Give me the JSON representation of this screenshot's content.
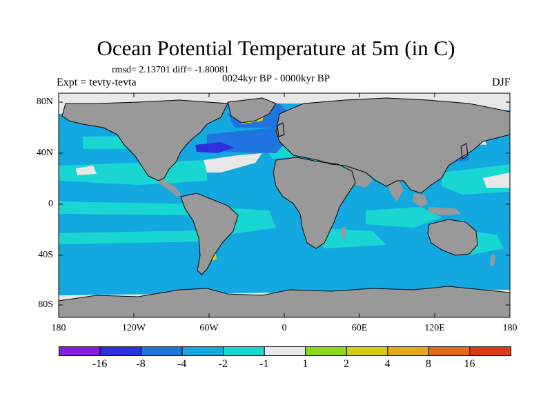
{
  "title": "Ocean Potential Temperature at 5m (in C)",
  "stats": "rmsd= 2.13701 diff= -1.80081",
  "period": "0024kyr BP - 0000kyr BP",
  "experiment": "Expt = tevty-tevta",
  "season": "DJF",
  "y_axis_labels": [
    "80N",
    "40N",
    "0",
    "40S",
    "80S"
  ],
  "x_axis_labels": [
    "180",
    "120W",
    "60W",
    "0",
    "60E",
    "120E",
    "180"
  ],
  "colorbar": {
    "colors": [
      "#8a1ae0",
      "#2f2fe0",
      "#1f74e0",
      "#13a8e0",
      "#18d6d2",
      "#e8e8e8",
      "#8ed61a",
      "#d6cd12",
      "#e6a817",
      "#e46a16",
      "#e03a14"
    ],
    "labels": [
      "-16",
      "-8",
      "-4",
      "-2",
      "-1",
      "1",
      "2",
      "4",
      "8",
      "16"
    ]
  },
  "map_colors": {
    "ocean_base": "#13a8e0",
    "ocean_light": "#18d6d2",
    "ocean_dark": "#1f74e0",
    "ocean_deep": "#2f2fe0",
    "near_zero": "#e8e8e8",
    "land": "#999999",
    "coast": "#000000"
  }
}
